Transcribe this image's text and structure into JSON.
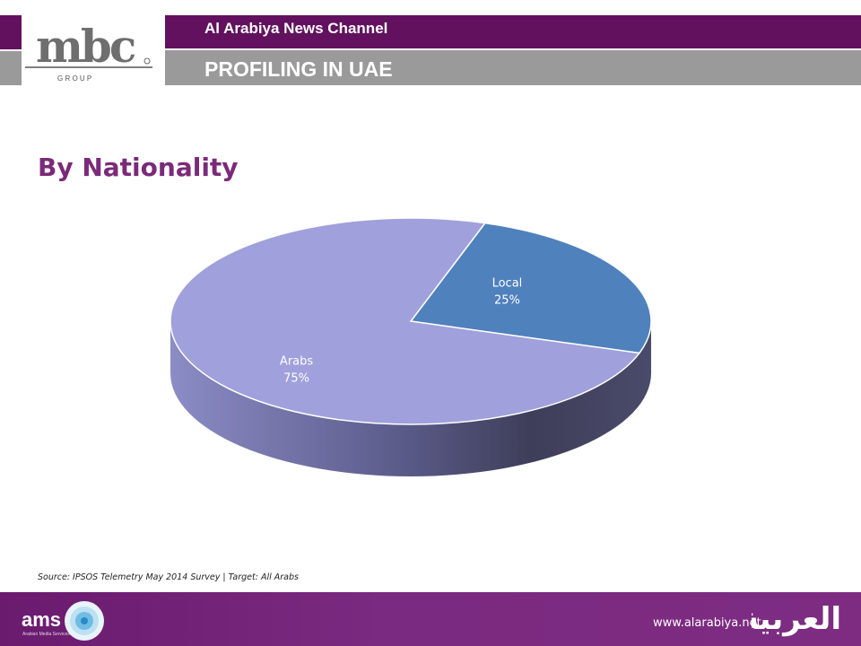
{
  "header": {
    "channel": "Al Arabiya News Channel",
    "title": "PROFILING IN UAE",
    "logo_text": "mbc",
    "logo_sub": "G R O U P"
  },
  "heading": "By Nationality",
  "chart_data": {
    "type": "pie",
    "slices": [
      {
        "label": "Local",
        "value_label": "25%",
        "value": 25,
        "color": "#4f81bd"
      },
      {
        "label": "Arabs",
        "value_label": "75%",
        "value": 75,
        "color": "#a0a0dc"
      }
    ],
    "style": "3d"
  },
  "source": "Source: IPSOS Telemetry May 2014 Survey | Target: All Arabs",
  "footer": {
    "url": "www.alarabiya.net",
    "ams_text": "ams",
    "ams_sub": "Arabian Media Services",
    "arabic_logo": "العربية"
  },
  "colors": {
    "brand_purple": "#62115f",
    "heading_purple": "#7b2a7a",
    "title_gray": "#9a9a9a"
  }
}
